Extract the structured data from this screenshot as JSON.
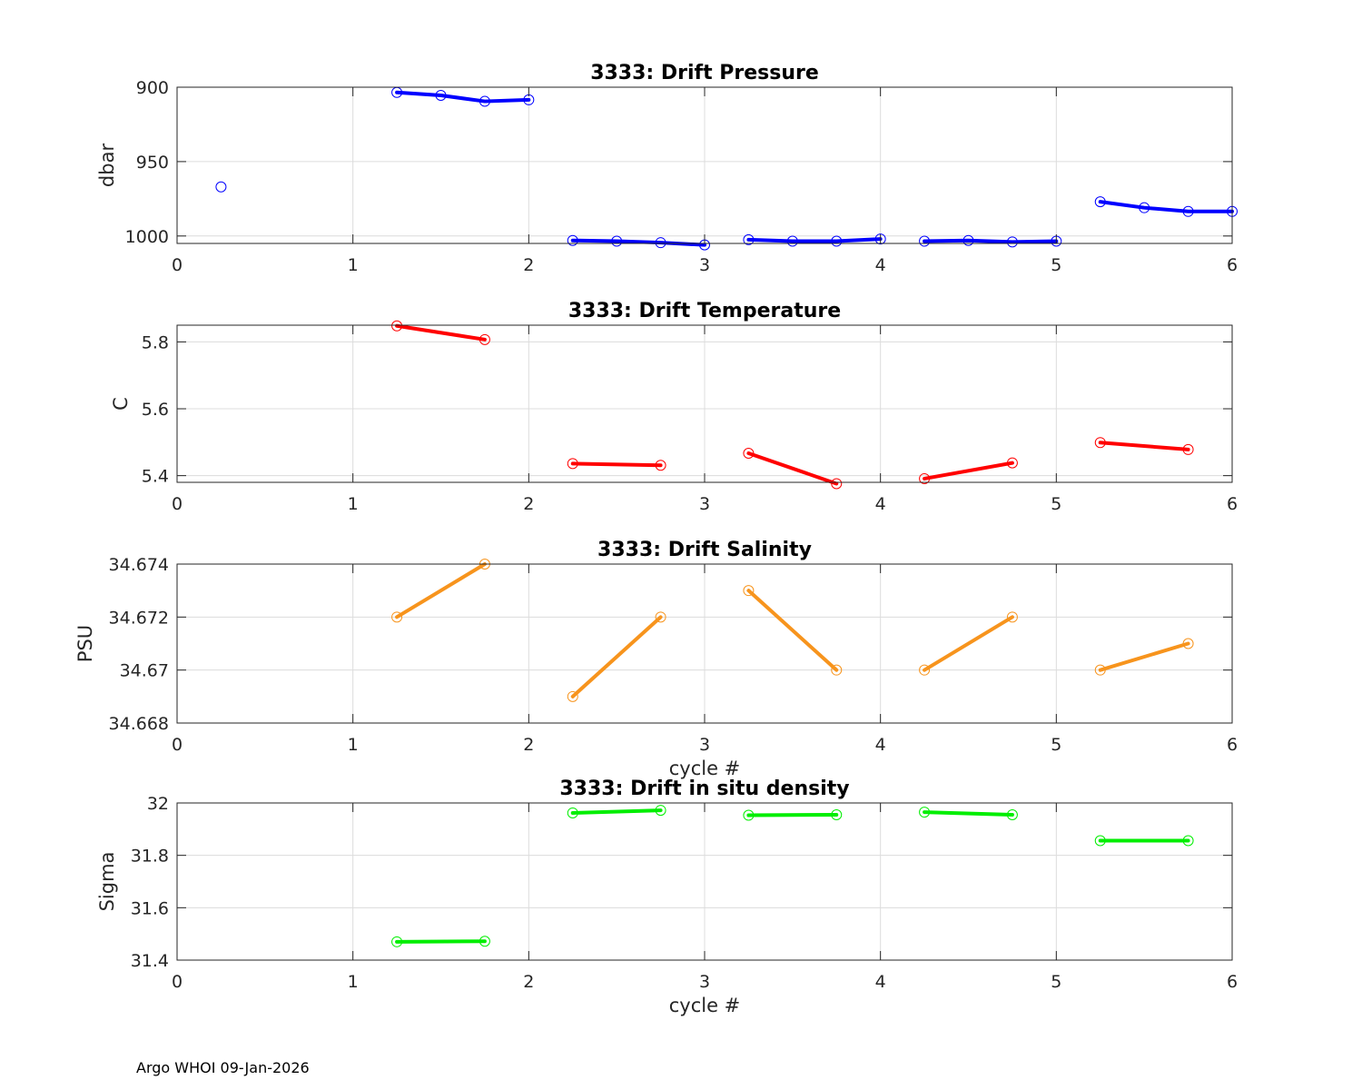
{
  "footer": "Argo WHOI 09-Jan-2026",
  "chart_data": [
    {
      "type": "line",
      "title": "3333: Drift Pressure",
      "xlabel": "",
      "ylabel": "dbar",
      "xlim": [
        0,
        6
      ],
      "ylim": [
        900,
        1005
      ],
      "y_reversed": true,
      "xticks": [
        0,
        1,
        2,
        3,
        4,
        5,
        6
      ],
      "yticks": [
        900,
        950,
        1000
      ],
      "grid": true,
      "color": "#0000ff",
      "segments": [
        {
          "x": [
            0.25
          ],
          "y": [
            967
          ]
        },
        {
          "x": [
            1.25,
            1.5,
            1.75,
            2.0
          ],
          "y": [
            903.5,
            905.5,
            909.5,
            908.5
          ]
        },
        {
          "x": [
            2.25,
            2.5,
            2.75,
            3.0
          ],
          "y": [
            1003.0,
            1003.5,
            1004.5,
            1006.0
          ]
        },
        {
          "x": [
            3.25,
            3.5,
            3.75,
            4.0
          ],
          "y": [
            1002.5,
            1003.5,
            1003.5,
            1002.0
          ]
        },
        {
          "x": [
            4.25,
            4.5,
            4.75,
            5.0
          ],
          "y": [
            1003.5,
            1003.0,
            1004.0,
            1003.5
          ]
        },
        {
          "x": [
            5.25,
            5.5,
            5.75,
            6.0
          ],
          "y": [
            977.0,
            981.0,
            983.5,
            983.5
          ]
        }
      ]
    },
    {
      "type": "line",
      "title": "3333: Drift Temperature",
      "xlabel": "",
      "ylabel": "C",
      "xlim": [
        0,
        6
      ],
      "ylim": [
        5.38,
        5.85
      ],
      "xticks": [
        0,
        1,
        2,
        3,
        4,
        5,
        6
      ],
      "yticks": [
        5.4,
        5.6,
        5.8
      ],
      "grid": true,
      "color": "#ff0000",
      "segments": [
        {
          "x": [
            1.25,
            1.75
          ],
          "y": [
            5.848,
            5.807
          ]
        },
        {
          "x": [
            2.25,
            2.75
          ],
          "y": [
            5.436,
            5.431
          ]
        },
        {
          "x": [
            3.25,
            3.75
          ],
          "y": [
            5.467,
            5.376
          ]
        },
        {
          "x": [
            4.25,
            4.75
          ],
          "y": [
            5.391,
            5.438
          ]
        },
        {
          "x": [
            5.25,
            5.75
          ],
          "y": [
            5.499,
            5.478
          ]
        }
      ]
    },
    {
      "type": "line",
      "title": "3333: Drift Salinity",
      "xlabel": "cycle #",
      "ylabel": "PSU",
      "xlim": [
        0,
        6
      ],
      "ylim": [
        34.668,
        34.674
      ],
      "xticks": [
        0,
        1,
        2,
        3,
        4,
        5,
        6
      ],
      "yticks": [
        34.668,
        34.67,
        34.672,
        34.674
      ],
      "ytick_labels": [
        "34.668",
        "34.67",
        "34.672",
        "34.674"
      ],
      "grid": true,
      "color": "#f7941d",
      "segments": [
        {
          "x": [
            1.25,
            1.75
          ],
          "y": [
            34.672,
            34.674
          ]
        },
        {
          "x": [
            2.25,
            2.75
          ],
          "y": [
            34.669,
            34.672
          ]
        },
        {
          "x": [
            3.25,
            3.75
          ],
          "y": [
            34.673,
            34.67
          ]
        },
        {
          "x": [
            4.25,
            4.75
          ],
          "y": [
            34.67,
            34.672
          ]
        },
        {
          "x": [
            5.25,
            5.75
          ],
          "y": [
            34.67,
            34.671
          ]
        }
      ]
    },
    {
      "type": "line",
      "title": "3333: Drift in situ density",
      "xlabel": "cycle #",
      "ylabel": "Sigma",
      "xlim": [
        0,
        6
      ],
      "ylim": [
        31.4,
        32.0
      ],
      "xticks": [
        0,
        1,
        2,
        3,
        4,
        5,
        6
      ],
      "yticks": [
        31.4,
        31.6,
        31.8,
        32.0
      ],
      "ytick_labels": [
        "31.4",
        "31.6",
        "31.8",
        "32"
      ],
      "grid": true,
      "color": "#00ee00",
      "segments": [
        {
          "x": [
            1.25,
            1.75
          ],
          "y": [
            31.47,
            31.472
          ]
        },
        {
          "x": [
            2.25,
            2.75
          ],
          "y": [
            31.962,
            31.972
          ]
        },
        {
          "x": [
            3.25,
            3.75
          ],
          "y": [
            31.953,
            31.955
          ]
        },
        {
          "x": [
            4.25,
            4.75
          ],
          "y": [
            31.965,
            31.955
          ]
        },
        {
          "x": [
            5.25,
            5.75
          ],
          "y": [
            31.856,
            31.856
          ]
        }
      ]
    }
  ]
}
